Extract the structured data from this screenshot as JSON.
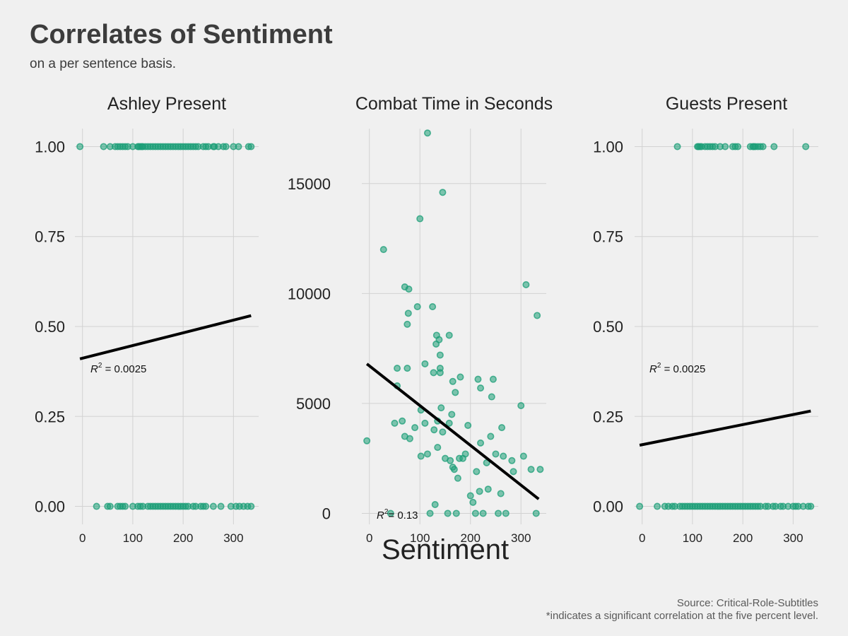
{
  "title": "Correlates of Sentiment",
  "subtitle": "on a per sentence basis.",
  "caption_source": "Source: Critical-Role-Subtitles",
  "caption_note": "*indicates a significant correlation at the five percent level.",
  "colors": {
    "points": "#1b9e77",
    "fit_line": "#000000",
    "grid": "#d2d2d2",
    "background": "#f0f0f0"
  },
  "chart_data": [
    {
      "type": "scatter",
      "title": "Ashley Present",
      "xlabel": "Sentiment",
      "ylabel": "",
      "xlim": [
        -15,
        350
      ],
      "ylim": [
        -0.05,
        1.05
      ],
      "x_ticks": [
        0,
        100,
        200,
        300
      ],
      "y_ticks": [
        0.0,
        0.25,
        0.5,
        0.75,
        1.0
      ],
      "y_tick_labels": [
        "0.00",
        "0.25",
        "0.50",
        "0.75",
        "1.00"
      ],
      "fit_line": {
        "x": [
          -5,
          335
        ],
        "y": [
          0.41,
          0.53
        ]
      },
      "r2_label": {
        "prefix": "R",
        "sup": "2",
        "value": " = 0.0025"
      },
      "points": [
        [
          -5,
          1
        ],
        [
          42,
          1
        ],
        [
          55,
          1
        ],
        [
          65,
          1
        ],
        [
          70,
          1
        ],
        [
          75,
          1
        ],
        [
          80,
          1
        ],
        [
          85,
          1
        ],
        [
          90,
          1
        ],
        [
          100,
          1
        ],
        [
          110,
          1
        ],
        [
          112,
          1
        ],
        [
          115,
          1
        ],
        [
          118,
          1
        ],
        [
          120,
          1
        ],
        [
          125,
          1
        ],
        [
          130,
          1
        ],
        [
          135,
          1
        ],
        [
          140,
          1
        ],
        [
          145,
          1
        ],
        [
          150,
          1
        ],
        [
          155,
          1
        ],
        [
          160,
          1
        ],
        [
          165,
          1
        ],
        [
          170,
          1
        ],
        [
          175,
          1
        ],
        [
          180,
          1
        ],
        [
          185,
          1
        ],
        [
          190,
          1
        ],
        [
          195,
          1
        ],
        [
          200,
          1
        ],
        [
          205,
          1
        ],
        [
          210,
          1
        ],
        [
          215,
          1
        ],
        [
          220,
          1
        ],
        [
          225,
          1
        ],
        [
          230,
          1
        ],
        [
          240,
          1
        ],
        [
          245,
          1
        ],
        [
          250,
          1
        ],
        [
          260,
          1
        ],
        [
          262,
          1
        ],
        [
          270,
          1
        ],
        [
          280,
          1
        ],
        [
          285,
          1
        ],
        [
          300,
          1
        ],
        [
          310,
          1
        ],
        [
          330,
          1
        ],
        [
          335,
          1
        ],
        [
          28,
          0
        ],
        [
          50,
          0
        ],
        [
          55,
          0
        ],
        [
          70,
          0
        ],
        [
          75,
          0
        ],
        [
          80,
          0
        ],
        [
          85,
          0
        ],
        [
          100,
          0
        ],
        [
          110,
          0
        ],
        [
          115,
          0
        ],
        [
          120,
          0
        ],
        [
          130,
          0
        ],
        [
          135,
          0
        ],
        [
          140,
          0
        ],
        [
          145,
          0
        ],
        [
          150,
          0
        ],
        [
          155,
          0
        ],
        [
          160,
          0
        ],
        [
          165,
          0
        ],
        [
          170,
          0
        ],
        [
          175,
          0
        ],
        [
          180,
          0
        ],
        [
          185,
          0
        ],
        [
          190,
          0
        ],
        [
          195,
          0
        ],
        [
          200,
          0
        ],
        [
          205,
          0
        ],
        [
          210,
          0
        ],
        [
          220,
          0
        ],
        [
          225,
          0
        ],
        [
          235,
          0
        ],
        [
          240,
          0
        ],
        [
          245,
          0
        ],
        [
          260,
          0
        ],
        [
          275,
          0
        ],
        [
          295,
          0
        ],
        [
          305,
          0
        ],
        [
          312,
          0
        ],
        [
          320,
          0
        ],
        [
          328,
          0
        ],
        [
          335,
          0
        ]
      ]
    },
    {
      "type": "scatter",
      "title": "Combat Time in Seconds",
      "xlabel": "Sentiment",
      "ylabel": "",
      "xlim": [
        -15,
        350
      ],
      "ylim": [
        -500,
        17500
      ],
      "x_ticks": [
        0,
        100,
        200,
        300
      ],
      "y_ticks": [
        0,
        5000,
        10000,
        15000
      ],
      "y_tick_labels": [
        "0",
        "5000",
        "10000",
        "15000"
      ],
      "fit_line": {
        "x": [
          -5,
          335
        ],
        "y": [
          6800,
          650
        ]
      },
      "r2_label": {
        "prefix": "R",
        "sup": "2",
        "value": "= 0.13"
      },
      "points": [
        [
          -5,
          3300
        ],
        [
          28,
          12000
        ],
        [
          42,
          0
        ],
        [
          50,
          4100
        ],
        [
          55,
          6600
        ],
        [
          55,
          5800
        ],
        [
          65,
          4200
        ],
        [
          70,
          10300
        ],
        [
          70,
          3500
        ],
        [
          75,
          6600
        ],
        [
          75,
          8600
        ],
        [
          77,
          9100
        ],
        [
          78,
          10200
        ],
        [
          80,
          3400
        ],
        [
          90,
          3900
        ],
        [
          95,
          9400
        ],
        [
          100,
          13400
        ],
        [
          102,
          2600
        ],
        [
          102,
          4700
        ],
        [
          110,
          4100
        ],
        [
          110,
          6800
        ],
        [
          115,
          2700
        ],
        [
          115,
          17300
        ],
        [
          120,
          0
        ],
        [
          125,
          9400
        ],
        [
          127,
          6400
        ],
        [
          128,
          3800
        ],
        [
          130,
          400
        ],
        [
          132,
          7700
        ],
        [
          133,
          8100
        ],
        [
          135,
          3000
        ],
        [
          135,
          4200
        ],
        [
          138,
          7900
        ],
        [
          140,
          7200
        ],
        [
          140,
          6400
        ],
        [
          140,
          6600
        ],
        [
          142,
          4800
        ],
        [
          145,
          14600
        ],
        [
          145,
          3700
        ],
        [
          150,
          2500
        ],
        [
          155,
          0
        ],
        [
          158,
          8100
        ],
        [
          158,
          4100
        ],
        [
          160,
          2400
        ],
        [
          163,
          4500
        ],
        [
          165,
          2100
        ],
        [
          165,
          6000
        ],
        [
          168,
          2000
        ],
        [
          170,
          5500
        ],
        [
          172,
          0
        ],
        [
          175,
          1600
        ],
        [
          178,
          2500
        ],
        [
          180,
          6200
        ],
        [
          185,
          2500
        ],
        [
          190,
          2700
        ],
        [
          195,
          4000
        ],
        [
          200,
          800
        ],
        [
          205,
          500
        ],
        [
          210,
          0
        ],
        [
          212,
          1900
        ],
        [
          215,
          6100
        ],
        [
          218,
          1000
        ],
        [
          220,
          3200
        ],
        [
          220,
          5700
        ],
        [
          225,
          0
        ],
        [
          232,
          2300
        ],
        [
          235,
          1100
        ],
        [
          240,
          3500
        ],
        [
          242,
          5300
        ],
        [
          245,
          6100
        ],
        [
          250,
          2700
        ],
        [
          255,
          0
        ],
        [
          260,
          900
        ],
        [
          262,
          3900
        ],
        [
          265,
          2600
        ],
        [
          270,
          0
        ],
        [
          282,
          2400
        ],
        [
          285,
          1900
        ],
        [
          300,
          4900
        ],
        [
          305,
          2600
        ],
        [
          310,
          10400
        ],
        [
          320,
          2000
        ],
        [
          330,
          0
        ],
        [
          332,
          9000
        ],
        [
          338,
          2000
        ]
      ]
    },
    {
      "type": "scatter",
      "title": "Guests Present",
      "xlabel": "Sentiment",
      "ylabel": "",
      "xlim": [
        -15,
        350
      ],
      "ylim": [
        -0.05,
        1.05
      ],
      "x_ticks": [
        0,
        100,
        200,
        300
      ],
      "y_ticks": [
        0.0,
        0.25,
        0.5,
        0.75,
        1.0
      ],
      "y_tick_labels": [
        "0.00",
        "0.25",
        "0.50",
        "0.75",
        "1.00"
      ],
      "fit_line": {
        "x": [
          -5,
          335
        ],
        "y": [
          0.17,
          0.265
        ]
      },
      "r2_label": {
        "prefix": "R",
        "sup": "2",
        "value": " = 0.0025"
      },
      "points": [
        [
          70,
          1
        ],
        [
          110,
          1
        ],
        [
          112,
          1
        ],
        [
          115,
          1
        ],
        [
          118,
          1
        ],
        [
          125,
          1
        ],
        [
          130,
          1
        ],
        [
          135,
          1
        ],
        [
          140,
          1
        ],
        [
          145,
          1
        ],
        [
          155,
          1
        ],
        [
          165,
          1
        ],
        [
          180,
          1
        ],
        [
          185,
          1
        ],
        [
          190,
          1
        ],
        [
          215,
          1
        ],
        [
          220,
          1
        ],
        [
          222,
          1
        ],
        [
          225,
          1
        ],
        [
          230,
          1
        ],
        [
          235,
          1
        ],
        [
          240,
          1
        ],
        [
          262,
          1
        ],
        [
          325,
          1
        ],
        [
          -5,
          0
        ],
        [
          30,
          0
        ],
        [
          45,
          0
        ],
        [
          52,
          0
        ],
        [
          60,
          0
        ],
        [
          65,
          0
        ],
        [
          75,
          0
        ],
        [
          80,
          0
        ],
        [
          85,
          0
        ],
        [
          90,
          0
        ],
        [
          95,
          0
        ],
        [
          100,
          0
        ],
        [
          105,
          0
        ],
        [
          110,
          0
        ],
        [
          115,
          0
        ],
        [
          120,
          0
        ],
        [
          125,
          0
        ],
        [
          130,
          0
        ],
        [
          135,
          0
        ],
        [
          140,
          0
        ],
        [
          145,
          0
        ],
        [
          150,
          0
        ],
        [
          155,
          0
        ],
        [
          160,
          0
        ],
        [
          165,
          0
        ],
        [
          170,
          0
        ],
        [
          175,
          0
        ],
        [
          180,
          0
        ],
        [
          185,
          0
        ],
        [
          190,
          0
        ],
        [
          195,
          0
        ],
        [
          200,
          0
        ],
        [
          205,
          0
        ],
        [
          210,
          0
        ],
        [
          215,
          0
        ],
        [
          220,
          0
        ],
        [
          225,
          0
        ],
        [
          230,
          0
        ],
        [
          235,
          0
        ],
        [
          245,
          0
        ],
        [
          250,
          0
        ],
        [
          260,
          0
        ],
        [
          265,
          0
        ],
        [
          275,
          0
        ],
        [
          280,
          0
        ],
        [
          290,
          0
        ],
        [
          300,
          0
        ],
        [
          305,
          0
        ],
        [
          310,
          0
        ],
        [
          320,
          0
        ],
        [
          330,
          0
        ],
        [
          335,
          0
        ]
      ]
    }
  ]
}
